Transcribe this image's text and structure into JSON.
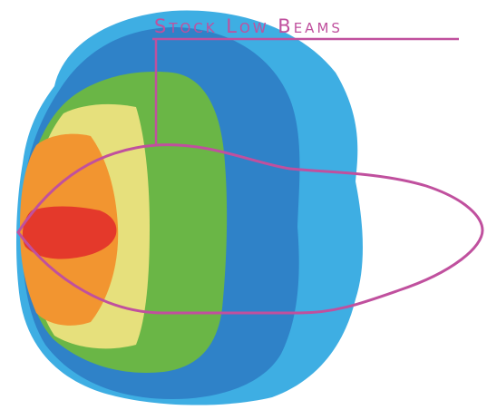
{
  "label": "Stock Low Beams"
}
